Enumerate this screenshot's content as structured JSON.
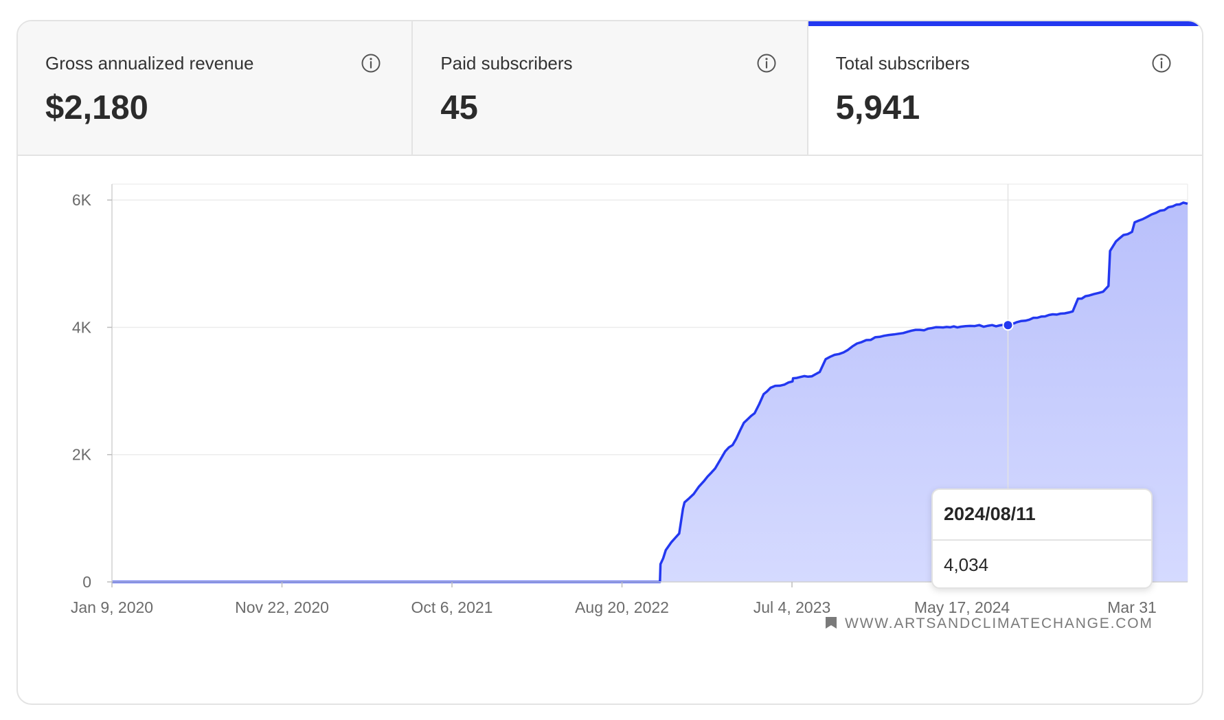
{
  "stats": [
    {
      "label": "Gross annualized revenue",
      "value": "$2,180",
      "active": false
    },
    {
      "label": "Paid subscribers",
      "value": "45",
      "active": false
    },
    {
      "label": "Total subscribers",
      "value": "5,941",
      "active": true
    }
  ],
  "icons": {
    "info": "info-circle-icon",
    "watermark": "bookmark-icon"
  },
  "colors": {
    "accent": "#2338f0",
    "area": "#c2c8fb",
    "grid": "#ececec",
    "axis_text": "#6b6b6b"
  },
  "watermark": "WWW.ARTSANDCLIMATECHANGE.COM",
  "tooltip": {
    "date": "2024/08/11",
    "value": "4,034"
  },
  "chart_data": {
    "type": "area",
    "title": "",
    "xlabel": "",
    "ylabel": "",
    "x_ticks": [
      "Jan 9, 2020",
      "Nov 22, 2020",
      "Oct 6, 2021",
      "Aug 20, 2022",
      "Jul 4, 2023",
      "May 17, 2024",
      "Mar 31"
    ],
    "y_ticks": [
      "0",
      "2K",
      "4K",
      "6K"
    ],
    "ylim": [
      0,
      6250
    ],
    "xlim": [
      "2020-01-09",
      "2025-07-13"
    ],
    "grid": true,
    "legend": "none",
    "series": [
      {
        "x": [
          "2020-01-09",
          "2022-10-30",
          "2022-10-31",
          "2022-11-05",
          "2022-11-10",
          "2022-11-20",
          "2022-12-05",
          "2022-12-12",
          "2022-12-15",
          "2023-01-01",
          "2023-01-20",
          "2023-02-10",
          "2023-03-01",
          "2023-03-15",
          "2023-04-05",
          "2023-04-25",
          "2023-05-12",
          "2023-05-25",
          "2023-06-20",
          "2023-07-05",
          "2023-07-06",
          "2023-07-20",
          "2023-08-10",
          "2023-08-25",
          "2023-09-05",
          "2023-09-30",
          "2023-10-25",
          "2023-11-20",
          "2023-12-15",
          "2024-01-01",
          "2024-01-20",
          "2024-02-05",
          "2024-02-28",
          "2024-03-15",
          "2024-04-05",
          "2024-04-25",
          "2024-05-15",
          "2024-06-10",
          "2024-07-05",
          "2024-08-11",
          "2024-09-05",
          "2024-10-05",
          "2024-11-10",
          "2024-12-10",
          "2024-12-20",
          "2025-01-10",
          "2025-02-05",
          "2025-02-15",
          "2025-02-18",
          "2025-03-01",
          "2025-03-15",
          "2025-03-31",
          "2025-04-05",
          "2025-04-20",
          "2025-05-15",
          "2025-06-15",
          "2025-07-05",
          "2025-07-13"
        ],
        "values": [
          0,
          0,
          280,
          370,
          500,
          620,
          760,
          1150,
          1250,
          1380,
          1580,
          1780,
          2050,
          2150,
          2500,
          2650,
          2950,
          3050,
          3100,
          3150,
          3200,
          3220,
          3230,
          3300,
          3500,
          3580,
          3700,
          3800,
          3850,
          3880,
          3900,
          3930,
          3960,
          3980,
          4000,
          4000,
          4010,
          4020,
          4025,
          4034,
          4100,
          4150,
          4200,
          4250,
          4450,
          4500,
          4560,
          4650,
          5200,
          5350,
          5450,
          5500,
          5650,
          5700,
          5800,
          5900,
          5960,
          5941
        ]
      }
    ]
  }
}
